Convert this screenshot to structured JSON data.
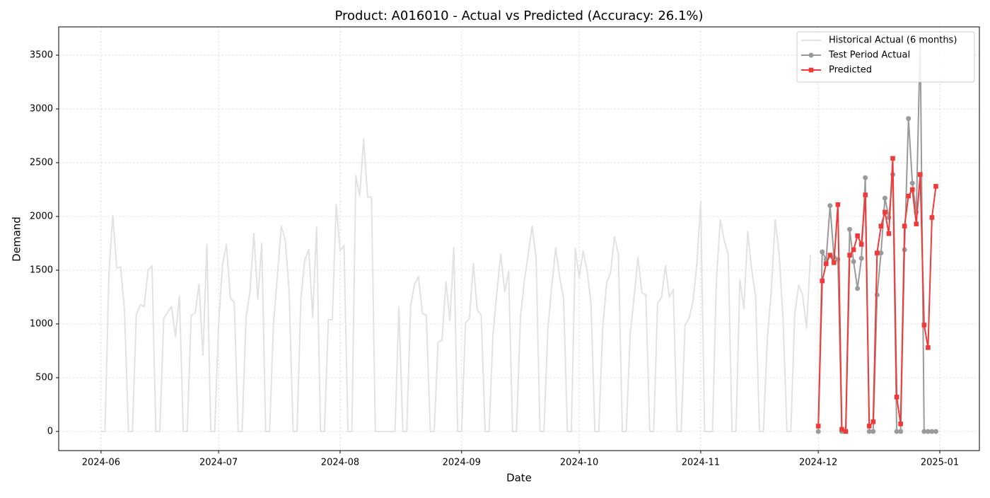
{
  "chart_data": {
    "type": "line",
    "title": "Product: A016010 - Actual vs Predicted (Accuracy: 26.1%)",
    "x_label": "Date",
    "y_label": "Demand",
    "xlim": [
      -10.8,
      224.1
    ],
    "xticks": [
      {
        "value": 0,
        "label": "2024-06"
      },
      {
        "value": 30,
        "label": "2024-07"
      },
      {
        "value": 61,
        "label": "2024-08"
      },
      {
        "value": 92,
        "label": "2024-09"
      },
      {
        "value": 122,
        "label": "2024-10"
      },
      {
        "value": 153,
        "label": "2024-11"
      },
      {
        "value": 183,
        "label": "2024-12"
      },
      {
        "value": 214,
        "label": "2025-01"
      }
    ],
    "ylim": [
      -178,
      3763
    ],
    "yticks": [
      0,
      500,
      1000,
      1500,
      2000,
      2500,
      3000,
      3500
    ],
    "grid": true,
    "legend": "upper right",
    "series": [
      {
        "name": "Historical Actual (6 months)",
        "color": "#e2e2e2",
        "marker": "none",
        "x": [
          0,
          1,
          2,
          3,
          4,
          5,
          6,
          7,
          8,
          9,
          10,
          11,
          12,
          13,
          14,
          15,
          16,
          17,
          18,
          19,
          20,
          21,
          22,
          23,
          24,
          25,
          26,
          27,
          28,
          29,
          30,
          31,
          32,
          33,
          34,
          35,
          36,
          37,
          38,
          39,
          40,
          41,
          42,
          43,
          44,
          45,
          46,
          47,
          48,
          49,
          50,
          51,
          52,
          53,
          54,
          55,
          56,
          57,
          58,
          59,
          60,
          61,
          62,
          63,
          64,
          65,
          66,
          67,
          68,
          69,
          70,
          71,
          72,
          73,
          74,
          75,
          76,
          77,
          78,
          79,
          80,
          81,
          82,
          83,
          84,
          85,
          86,
          87,
          88,
          89,
          90,
          91,
          92,
          93,
          94,
          95,
          96,
          97,
          98,
          99,
          100,
          101,
          102,
          103,
          104,
          105,
          106,
          107,
          108,
          109,
          110,
          111,
          112,
          113,
          114,
          115,
          116,
          117,
          118,
          119,
          120,
          121,
          122,
          123,
          124,
          125,
          126,
          127,
          128,
          129,
          130,
          131,
          132,
          133,
          134,
          135,
          136,
          137,
          138,
          139,
          140,
          141,
          142,
          143,
          144,
          145,
          146,
          147,
          148,
          149,
          150,
          151,
          152,
          153,
          154,
          155,
          156,
          157,
          158,
          159,
          160,
          161,
          162,
          163,
          164,
          165,
          166,
          167,
          168,
          169,
          170,
          171,
          172,
          173,
          174,
          175,
          176,
          177,
          178,
          179,
          180,
          181
        ],
        "values": [
          0,
          0,
          1450,
          2010,
          1520,
          1530,
          1120,
          0,
          0,
          1080,
          1180,
          1160,
          1500,
          1540,
          0,
          0,
          1050,
          1110,
          1160,
          880,
          1260,
          0,
          0,
          1080,
          1100,
          1370,
          710,
          1740,
          0,
          0,
          1000,
          1550,
          1740,
          1240,
          1200,
          0,
          0,
          1060,
          1300,
          1840,
          1230,
          1750,
          0,
          0,
          1000,
          1450,
          1910,
          1780,
          1300,
          0,
          0,
          1240,
          1600,
          1690,
          1060,
          1900,
          0,
          0,
          1040,
          1040,
          2110,
          1680,
          1730,
          0,
          0,
          2380,
          2190,
          2720,
          2180,
          2180,
          0,
          0,
          0,
          0,
          0,
          0,
          1160,
          0,
          0,
          1170,
          1370,
          1440,
          1100,
          1080,
          0,
          0,
          830,
          850,
          1390,
          1030,
          1710,
          0,
          0,
          1010,
          1050,
          1560,
          1130,
          1080,
          0,
          0,
          900,
          1300,
          1650,
          1300,
          1490,
          0,
          0,
          1060,
          1400,
          1650,
          1910,
          1610,
          0,
          0,
          950,
          1350,
          1710,
          1440,
          1240,
          0,
          0,
          1700,
          1430,
          1680,
          1500,
          1200,
          0,
          0,
          970,
          1380,
          1480,
          1810,
          1650,
          0,
          0,
          900,
          1250,
          1620,
          1290,
          1270,
          0,
          0,
          1190,
          1250,
          1540,
          1250,
          1320,
          0,
          0,
          990,
          1050,
          1200,
          1550,
          2140,
          0,
          0,
          0,
          1400,
          1970,
          1780,
          1650,
          0,
          0,
          1410,
          1140,
          1860,
          1500,
          1260,
          0,
          0,
          870,
          1300,
          1970,
          1650,
          1050,
          0,
          0,
          1100,
          1360,
          1270,
          960,
          1640
        ]
      },
      {
        "name": "Test Period Actual",
        "color": "#9a9a9a",
        "marker": "circle",
        "x": [
          183,
          184,
          185,
          186,
          187,
          188,
          189,
          190,
          191,
          192,
          193,
          194,
          195,
          196,
          197,
          198,
          199,
          200,
          201,
          202,
          203,
          204,
          205,
          206,
          207,
          208,
          209,
          210,
          211,
          212,
          213
        ],
        "values": [
          0,
          1670,
          1600,
          2100,
          1620,
          1600,
          0,
          0,
          1880,
          1580,
          1330,
          1610,
          2360,
          0,
          0,
          1270,
          1660,
          2170,
          1990,
          2390,
          0,
          0,
          1690,
          2910,
          2310,
          2040,
          3650,
          0,
          0,
          0,
          0
        ]
      },
      {
        "name": "Predicted",
        "color": "#f03a3a",
        "marker": "square",
        "x": [
          183,
          184,
          185,
          186,
          187,
          188,
          189,
          190,
          191,
          192,
          193,
          194,
          195,
          196,
          197,
          198,
          199,
          200,
          201,
          202,
          203,
          204,
          205,
          206,
          207,
          208,
          209,
          210,
          211,
          212,
          213
        ],
        "values": [
          50,
          1400,
          1560,
          1640,
          1570,
          2110,
          20,
          0,
          1640,
          1690,
          1820,
          1740,
          2200,
          50,
          90,
          1660,
          1910,
          2040,
          1840,
          2540,
          320,
          70,
          1910,
          2190,
          2250,
          1930,
          2390,
          990,
          780,
          1990,
          2280
        ]
      }
    ]
  }
}
